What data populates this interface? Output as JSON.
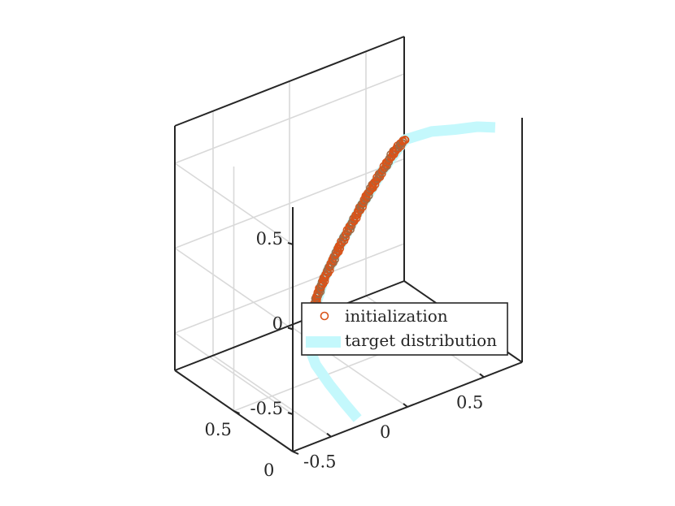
{
  "chart_data": {
    "type": "scatter",
    "projection": "3d",
    "title": "",
    "xlabel": "",
    "ylabel": "",
    "zlabel": "",
    "xlim": [
      -0.75,
      0.75
    ],
    "ylim": [
      0,
      1
    ],
    "zlim": [
      -0.72,
      0.72
    ],
    "x_ticks": [
      -0.5,
      0,
      0.5
    ],
    "x_tick_labels": [
      "-0.5",
      "0",
      "0.5"
    ],
    "y_ticks": [
      0,
      0.5
    ],
    "y_tick_labels": [
      "0",
      "0.5"
    ],
    "z_ticks": [
      -0.5,
      0,
      0.5
    ],
    "z_tick_labels": [
      "-0.5",
      "0",
      "0.5"
    ],
    "grid": true,
    "box": true,
    "legend_position": "lower-right",
    "series": [
      {
        "name": "initialization",
        "kind": "scatter",
        "marker": "circle",
        "color": "#d95319",
        "points": [
          [
            -0.22,
            0.55,
            -0.55
          ],
          [
            -0.22,
            0.54,
            -0.45
          ],
          [
            -0.21,
            0.53,
            -0.35
          ],
          [
            -0.19,
            0.52,
            -0.25
          ],
          [
            -0.16,
            0.5,
            -0.15
          ],
          [
            -0.12,
            0.48,
            -0.05
          ],
          [
            -0.08,
            0.46,
            0.05
          ],
          [
            -0.03,
            0.44,
            0.15
          ],
          [
            0.02,
            0.42,
            0.25
          ],
          [
            0.07,
            0.4,
            0.35
          ],
          [
            0.12,
            0.37,
            0.45
          ],
          [
            0.18,
            0.35,
            0.55
          ],
          [
            0.23,
            0.32,
            0.62
          ]
        ]
      },
      {
        "name": "target distribution",
        "kind": "line",
        "color": "#c4f8fc",
        "points": [
          [
            0.62,
            0.06,
            0.68
          ],
          [
            0.55,
            0.12,
            0.68
          ],
          [
            0.45,
            0.18,
            0.67
          ],
          [
            0.35,
            0.25,
            0.66
          ],
          [
            0.23,
            0.32,
            0.62
          ],
          [
            0.12,
            0.37,
            0.45
          ],
          [
            0.02,
            0.42,
            0.25
          ],
          [
            -0.08,
            0.46,
            0.05
          ],
          [
            -0.16,
            0.5,
            -0.15
          ],
          [
            -0.21,
            0.53,
            -0.35
          ],
          [
            -0.22,
            0.55,
            -0.55
          ],
          [
            -0.23,
            0.48,
            -0.62
          ],
          [
            -0.24,
            0.35,
            -0.67
          ],
          [
            -0.26,
            0.2,
            -0.7
          ],
          [
            -0.28,
            0.06,
            -0.72
          ]
        ]
      }
    ]
  }
}
